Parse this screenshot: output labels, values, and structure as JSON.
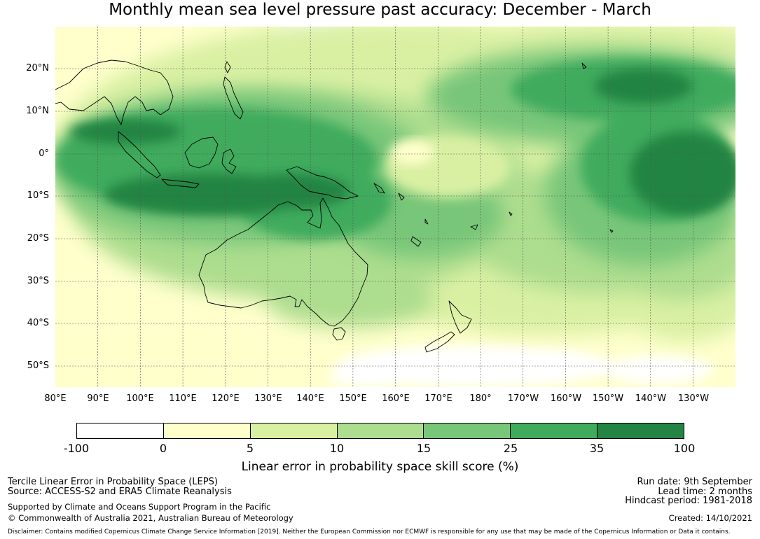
{
  "title": "Monthly mean sea level pressure past accuracy: December - March",
  "map": {
    "lat_labels": [
      "20°N",
      "10°N",
      "0°",
      "10°S",
      "20°S",
      "30°S",
      "40°S",
      "50°S"
    ],
    "lon_labels": [
      "80°E",
      "90°E",
      "100°E",
      "110°E",
      "120°E",
      "130°E",
      "140°E",
      "150°E",
      "160°E",
      "170°E",
      "180°",
      "170°W",
      "160°W",
      "150°W",
      "140°W",
      "130°W"
    ],
    "lon_range": [
      80,
      240
    ],
    "lat_range": [
      -55,
      30
    ],
    "grid": true,
    "colors": {
      "below_0": "#ffffff",
      "0_5": "#ffffcc",
      "5_15_light": "#d9f0a3",
      "10_15": "#addd8e",
      "15_25": "#78c679",
      "25_35": "#41ab5d",
      "35_100": "#238443",
      "coast": "#000000",
      "grid": "#555555"
    }
  },
  "colorbar": {
    "ticks": [
      "-100",
      "0",
      "5",
      "10",
      "15",
      "25",
      "35",
      "100"
    ],
    "colors": [
      "#ffffff",
      "#ffffcc",
      "#d9f0a3",
      "#addd8e",
      "#78c679",
      "#41ab5d",
      "#238443"
    ],
    "label": "Linear error in probability space skill score (%)"
  },
  "footer": {
    "method": "Tercile Linear Error in Probability Space (LEPS)",
    "source": "Source: ACCESS-S2 and ERA5 Climate Reanalysis",
    "support": "Supported by Climate and Oceans Support Program in the Pacific",
    "copyright": "© Commonwealth of Australia 2021, Australian Bureau of Meteorology",
    "run_date": "Run date: 9th September",
    "lead_time": "Lead time: 2 months",
    "hindcast": "Hindcast period: 1981-2018",
    "created": "Created: 14/10/2021",
    "disclaimer": "Disclaimer: Contains modified Copernicus Climate Change Service Information [2019]. Neither the European Commission nor ECMWF is responsible for any use that may be made of the Copernicus Information or Data it contains."
  }
}
